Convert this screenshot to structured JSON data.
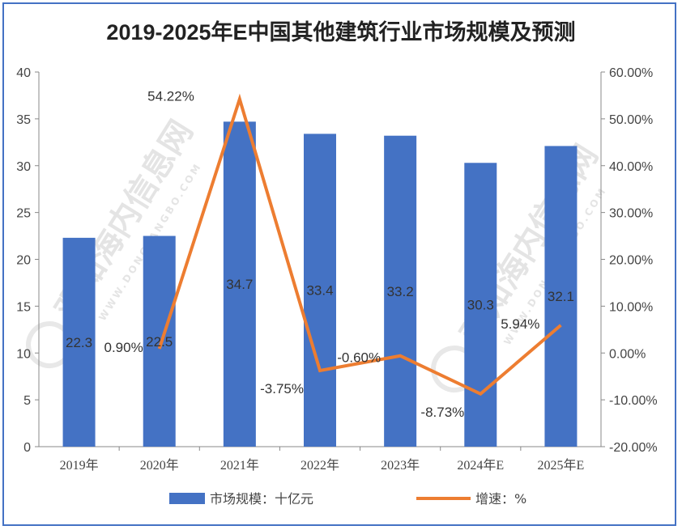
{
  "chart_data": {
    "type": "bar+line",
    "title": "2019-2025年E中国其他建筑行业市场规模及预测",
    "categories": [
      "2019年",
      "2020年",
      "2021年",
      "2022年",
      "2023年",
      "2024年E",
      "2025年E"
    ],
    "series": [
      {
        "name": "市场规模：十亿元",
        "type": "bar",
        "axis": "left",
        "color": "#4472c4",
        "values": [
          22.3,
          22.5,
          34.7,
          33.4,
          33.2,
          30.3,
          32.1
        ],
        "labels": [
          "22.3",
          "22.5",
          "34.7",
          "33.4",
          "33.2",
          "30.3",
          "32.1"
        ]
      },
      {
        "name": "增速：%",
        "type": "line",
        "axis": "right",
        "color": "#ed7d31",
        "values": [
          null,
          0.9,
          54.22,
          -3.75,
          -0.6,
          -8.73,
          5.94
        ],
        "labels": [
          "",
          "0.90%",
          "54.22%",
          "-3.75%",
          "-0.60%",
          "-8.73%",
          "5.94%"
        ]
      }
    ],
    "y_left": {
      "lim": [
        0,
        40
      ],
      "ticks": [
        "0",
        "5",
        "10",
        "15",
        "20",
        "25",
        "30",
        "35",
        "40"
      ]
    },
    "y_right": {
      "lim": [
        -20,
        60
      ],
      "ticks": [
        "-20.00%",
        "-10.00%",
        "0.00%",
        "10.00%",
        "20.00%",
        "30.00%",
        "40.00%",
        "50.00%",
        "60.00%"
      ]
    },
    "grid": false,
    "legend": "bottom"
  },
  "watermark": {
    "text": "观知海内信息网",
    "subtext": "WWW.DONGFANGBO.COM"
  }
}
